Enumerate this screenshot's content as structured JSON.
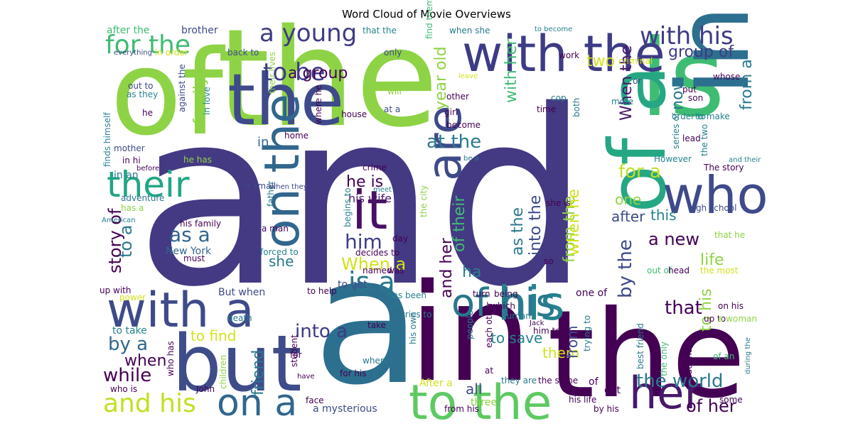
{
  "title": "Word Cloud of Movie Overviews",
  "palette": {
    "dark_purple": "#440154",
    "indigo": "#3e3b86",
    "blue": "#31668e",
    "teal": "#26828e",
    "green_teal": "#21a585",
    "green": "#3fbc73",
    "lime": "#8ed345",
    "yellow": "#d2e21b"
  },
  "words": [
    {
      "text": "and",
      "color": "#443983"
    },
    {
      "text": "a",
      "color": "#2c6f8e"
    },
    {
      "text": "of",
      "color": "#8ed345"
    },
    {
      "text": "the",
      "color": "#8ed345"
    },
    {
      "text": "in",
      "color": "#440154"
    },
    {
      "text": "the",
      "color": "#440154"
    },
    {
      "text": "is",
      "color": "#3fbc73"
    },
    {
      "text": "in a",
      "color": "#2c6f8e"
    },
    {
      "text": "of a",
      "color": "#26a784"
    },
    {
      "text": "but",
      "color": "#3e4c8a"
    },
    {
      "text": "the",
      "color": "#3e4a89"
    },
    {
      "text": "with the",
      "color": "#3e3b86"
    },
    {
      "text": "with a",
      "color": "#3e4a89"
    },
    {
      "text": "to the",
      "color": "#5ec962"
    },
    {
      "text": "on the",
      "color": "#31668e"
    },
    {
      "text": "who",
      "color": "#3e4a89"
    },
    {
      "text": "it",
      "color": "#471063"
    },
    {
      "text": "are",
      "color": "#3e4a89"
    },
    {
      "text": "his",
      "color": "#26828e"
    },
    {
      "text": "of his",
      "color": "#2a788e"
    },
    {
      "text": "her",
      "color": "#48186a"
    },
    {
      "text": "their",
      "color": "#21a585"
    },
    {
      "text": "a young",
      "color": "#3e3b86"
    },
    {
      "text": "for the",
      "color": "#3fbc73"
    },
    {
      "text": "with his",
      "color": "#3e3b86"
    },
    {
      "text": "on a",
      "color": "#31668e"
    },
    {
      "text": "and his",
      "color": "#c2df23"
    },
    {
      "text": "is a",
      "color": "#2a788e"
    },
    {
      "text": "into a",
      "color": "#3e3b86"
    },
    {
      "text": "as a",
      "color": "#31668e"
    },
    {
      "text": "to be",
      "color": "#3e3b86"
    },
    {
      "text": "group of",
      "color": "#3e3b86"
    },
    {
      "text": "from a",
      "color": "#2a788e"
    },
    {
      "text": "now",
      "color": "#2a788e"
    },
    {
      "text": "two",
      "color": "#d2e21b"
    },
    {
      "text": "a group",
      "color": "#440154"
    },
    {
      "text": "year old",
      "color": "#8ed345"
    },
    {
      "text": "with her",
      "color": "#3fbc73"
    },
    {
      "text": "When the",
      "color": "#48186a"
    },
    {
      "text": "family",
      "color": "#8ed345"
    },
    {
      "text": "at the",
      "color": "#2a788e"
    },
    {
      "text": "for a",
      "color": "#c2df23"
    },
    {
      "text": "he is",
      "color": "#440154"
    },
    {
      "text": "his wife",
      "color": "#48186a"
    },
    {
      "text": "of their",
      "color": "#3fbc73"
    },
    {
      "text": "into the",
      "color": "#3e4a89"
    },
    {
      "text": "from the",
      "color": "#8ed345"
    },
    {
      "text": "when he",
      "color": "#d2e21b"
    },
    {
      "text": "as the",
      "color": "#2a788e"
    },
    {
      "text": "him",
      "color": "#3e3b86"
    },
    {
      "text": "she",
      "color": "#2a788e"
    },
    {
      "text": "story of",
      "color": "#440154"
    },
    {
      "text": "to a",
      "color": "#2a788e"
    },
    {
      "text": "When a",
      "color": "#d2e21b"
    },
    {
      "text": "and her",
      "color": "#440154"
    },
    {
      "text": "ha",
      "color": "#26828e"
    },
    {
      "text": "one",
      "color": "#8ed345"
    },
    {
      "text": "after",
      "color": "#3e4a89"
    },
    {
      "text": "this",
      "color": "#26828e"
    },
    {
      "text": "a new",
      "color": "#440154"
    },
    {
      "text": "by the",
      "color": "#3e4a89"
    },
    {
      "text": "life",
      "color": "#8ed345"
    },
    {
      "text": "that",
      "color": "#440154"
    },
    {
      "text": "by a",
      "color": "#31668e"
    },
    {
      "text": "when",
      "color": "#440154"
    },
    {
      "text": "while",
      "color": "#440154"
    },
    {
      "text": "friend",
      "color": "#2a788e"
    },
    {
      "text": "to find",
      "color": "#d2e21b"
    },
    {
      "text": "to save",
      "color": "#26828e"
    },
    {
      "text": "them",
      "color": "#d2e21b"
    },
    {
      "text": "from",
      "color": "#3e4a89"
    },
    {
      "text": "all",
      "color": "#3e4a89"
    },
    {
      "text": "the world",
      "color": "#2a788e"
    },
    {
      "text": "of her",
      "color": "#440154"
    },
    {
      "text": "to his",
      "color": "#8ed345"
    },
    {
      "text": "in",
      "color": "#31668e"
    },
    {
      "text": "in an",
      "color": "#2a788e"
    },
    {
      "text": "New York",
      "color": "#31668e"
    },
    {
      "text": "a mysterious",
      "color": "#3e4a89"
    },
    {
      "text": "After a",
      "color": "#d2e21b"
    },
    {
      "text": "get",
      "color": "#440154"
    },
    {
      "text": "three",
      "color": "#8ed345"
    },
    {
      "text": "of",
      "color": "#440154"
    },
    {
      "text": "one of",
      "color": "#440154"
    },
    {
      "text": "to get",
      "color": "#3e4a89"
    },
    {
      "text": "But when",
      "color": "#3e4a89"
    },
    {
      "text": "to take",
      "color": "#26828e"
    },
    {
      "text": "after the",
      "color": "#3fbc73"
    },
    {
      "text": "brother",
      "color": "#3e4a89"
    },
    {
      "text": "that the",
      "color": "#26828e"
    },
    {
      "text": "when she",
      "color": "#2a788e"
    },
    {
      "text": "to become",
      "color": "#26828e"
    },
    {
      "text": "everything",
      "color": "#3e4a89"
    },
    {
      "text": "in order",
      "color": "#d2e21b"
    },
    {
      "text": "back to",
      "color": "#3e4a89"
    },
    {
      "text": "a small",
      "color": "#3e4a89"
    },
    {
      "text": "their lives",
      "color": "#8ed345"
    },
    {
      "text": "where he",
      "color": "#440154"
    },
    {
      "text": "only",
      "color": "#3e4a89"
    },
    {
      "text": "will",
      "color": "#8ed345"
    },
    {
      "text": "find themselves",
      "color": "#3fbc73"
    },
    {
      "text": "work",
      "color": "#440154"
    },
    {
      "text": "criminal",
      "color": "#d2e21b"
    },
    {
      "text": "leave",
      "color": "#d2e21b"
    },
    {
      "text": "other",
      "color": "#440154"
    },
    {
      "text": "or",
      "color": "#3e4a89"
    },
    {
      "text": "whose",
      "color": "#440154"
    },
    {
      "text": "put",
      "color": "#440154"
    },
    {
      "text": "son",
      "color": "#440154"
    },
    {
      "text": "out to",
      "color": "#3e4a89"
    },
    {
      "text": "as they",
      "color": "#26828e"
    },
    {
      "text": "against the",
      "color": "#3e4a89"
    },
    {
      "text": "in love",
      "color": "#26828e"
    },
    {
      "text": "finds himself",
      "color": "#26828e"
    },
    {
      "text": "he",
      "color": "#440154"
    },
    {
      "text": "house",
      "color": "#440154"
    },
    {
      "text": "at a",
      "color": "#3e4a89"
    },
    {
      "text": "girl",
      "color": "#440154"
    },
    {
      "text": "cop",
      "color": "#2a788e"
    },
    {
      "text": "time",
      "color": "#440154"
    },
    {
      "text": "both",
      "color": "#2a788e"
    },
    {
      "text": "more",
      "color": "#26828e"
    },
    {
      "text": "order to",
      "color": "#26828e"
    },
    {
      "text": "to make",
      "color": "#26828e"
    },
    {
      "text": "become",
      "color": "#440154"
    },
    {
      "text": "home",
      "color": "#440154"
    },
    {
      "text": "lead",
      "color": "#440154"
    },
    {
      "text": "the two",
      "color": "#26828e"
    },
    {
      "text": "series of",
      "color": "#26828e"
    },
    {
      "text": "However",
      "color": "#26828e"
    },
    {
      "text": "and their",
      "color": "#26828e"
    },
    {
      "text": "The story",
      "color": "#440154"
    },
    {
      "text": "mother",
      "color": "#3e4a89"
    },
    {
      "text": "in hi",
      "color": "#440154"
    },
    {
      "text": "he has",
      "color": "#8ed345"
    },
    {
      "text": "crime",
      "color": "#440154"
    },
    {
      "text": "be a",
      "color": "#2a788e"
    },
    {
      "text": "before",
      "color": "#440154"
    },
    {
      "text": "father",
      "color": "#2a788e"
    },
    {
      "text": "adventure",
      "color": "#2a788e"
    },
    {
      "text": "has a",
      "color": "#8ed345"
    },
    {
      "text": "when they",
      "color": "#3e4a89"
    },
    {
      "text": "his family",
      "color": "#440154"
    },
    {
      "text": "begins to",
      "color": "#26828e"
    },
    {
      "text": "the city",
      "color": "#8ed345"
    },
    {
      "text": "meet",
      "color": "#26828e"
    },
    {
      "text": "she is",
      "color": "#440154"
    },
    {
      "text": "high school",
      "color": "#3e4a89"
    },
    {
      "text": "American",
      "color": "#26828e"
    },
    {
      "text": "a man",
      "color": "#440154"
    },
    {
      "text": "day",
      "color": "#440154"
    },
    {
      "text": "that he",
      "color": "#8ed345"
    },
    {
      "text": "must",
      "color": "#440154"
    },
    {
      "text": "forced to",
      "color": "#26828e"
    },
    {
      "text": "decides to",
      "color": "#440154"
    },
    {
      "text": "so",
      "color": "#440154"
    },
    {
      "text": "out of",
      "color": "#3fbc73"
    },
    {
      "text": "named",
      "color": "#440154"
    },
    {
      "text": "was",
      "color": "#440154"
    },
    {
      "text": "head",
      "color": "#440154"
    },
    {
      "text": "the most",
      "color": "#d2e21b"
    },
    {
      "text": "up with",
      "color": "#440154"
    },
    {
      "text": "to help",
      "color": "#440154"
    },
    {
      "text": "has been",
      "color": "#26828e"
    },
    {
      "text": "turn",
      "color": "#440154"
    },
    {
      "text": "being",
      "color": "#440154"
    },
    {
      "text": "power",
      "color": "#d2e21b"
    },
    {
      "text": "which",
      "color": "#440154"
    },
    {
      "text": "on his",
      "color": "#440154"
    },
    {
      "text": "up to",
      "color": "#440154"
    },
    {
      "text": "a woman",
      "color": "#8ed345"
    },
    {
      "text": "death",
      "color": "#2a788e"
    },
    {
      "text": "by",
      "color": "#2a788e"
    },
    {
      "text": "tries to",
      "color": "#2a788e"
    },
    {
      "text": "human",
      "color": "#2a788e"
    },
    {
      "text": "take",
      "color": "#440154"
    },
    {
      "text": "Jack",
      "color": "#440154"
    },
    {
      "text": "him to",
      "color": "#440154"
    },
    {
      "text": "who has",
      "color": "#440154"
    },
    {
      "text": "his own",
      "color": "#2a788e"
    },
    {
      "text": "people",
      "color": "#2a788e"
    },
    {
      "text": "each other",
      "color": "#440154"
    },
    {
      "text": "trying to",
      "color": "#2a788e"
    },
    {
      "text": "best friend",
      "color": "#2a788e"
    },
    {
      "text": "the only",
      "color": "#3fbc73"
    },
    {
      "text": "daughter",
      "color": "#440154"
    },
    {
      "text": "during the",
      "color": "#2a788e"
    },
    {
      "text": "of an",
      "color": "#3fbc73"
    },
    {
      "text": "student",
      "color": "#440154"
    },
    {
      "text": "for",
      "color": "#440154"
    },
    {
      "text": "where",
      "color": "#2a788e"
    },
    {
      "text": "at",
      "color": "#440154"
    },
    {
      "text": "they are",
      "color": "#2a788e"
    },
    {
      "text": "who is",
      "color": "#440154"
    },
    {
      "text": "John",
      "color": "#440154"
    },
    {
      "text": "children",
      "color": "#8ed345"
    },
    {
      "text": "have",
      "color": "#440154"
    },
    {
      "text": "for his",
      "color": "#440154"
    },
    {
      "text": "face",
      "color": "#440154"
    },
    {
      "text": "the same",
      "color": "#440154"
    },
    {
      "text": "his life",
      "color": "#440154"
    },
    {
      "text": "by his",
      "color": "#440154"
    },
    {
      "text": "from his",
      "color": "#440154"
    },
    {
      "text": "some",
      "color": "#440154"
    }
  ]
}
